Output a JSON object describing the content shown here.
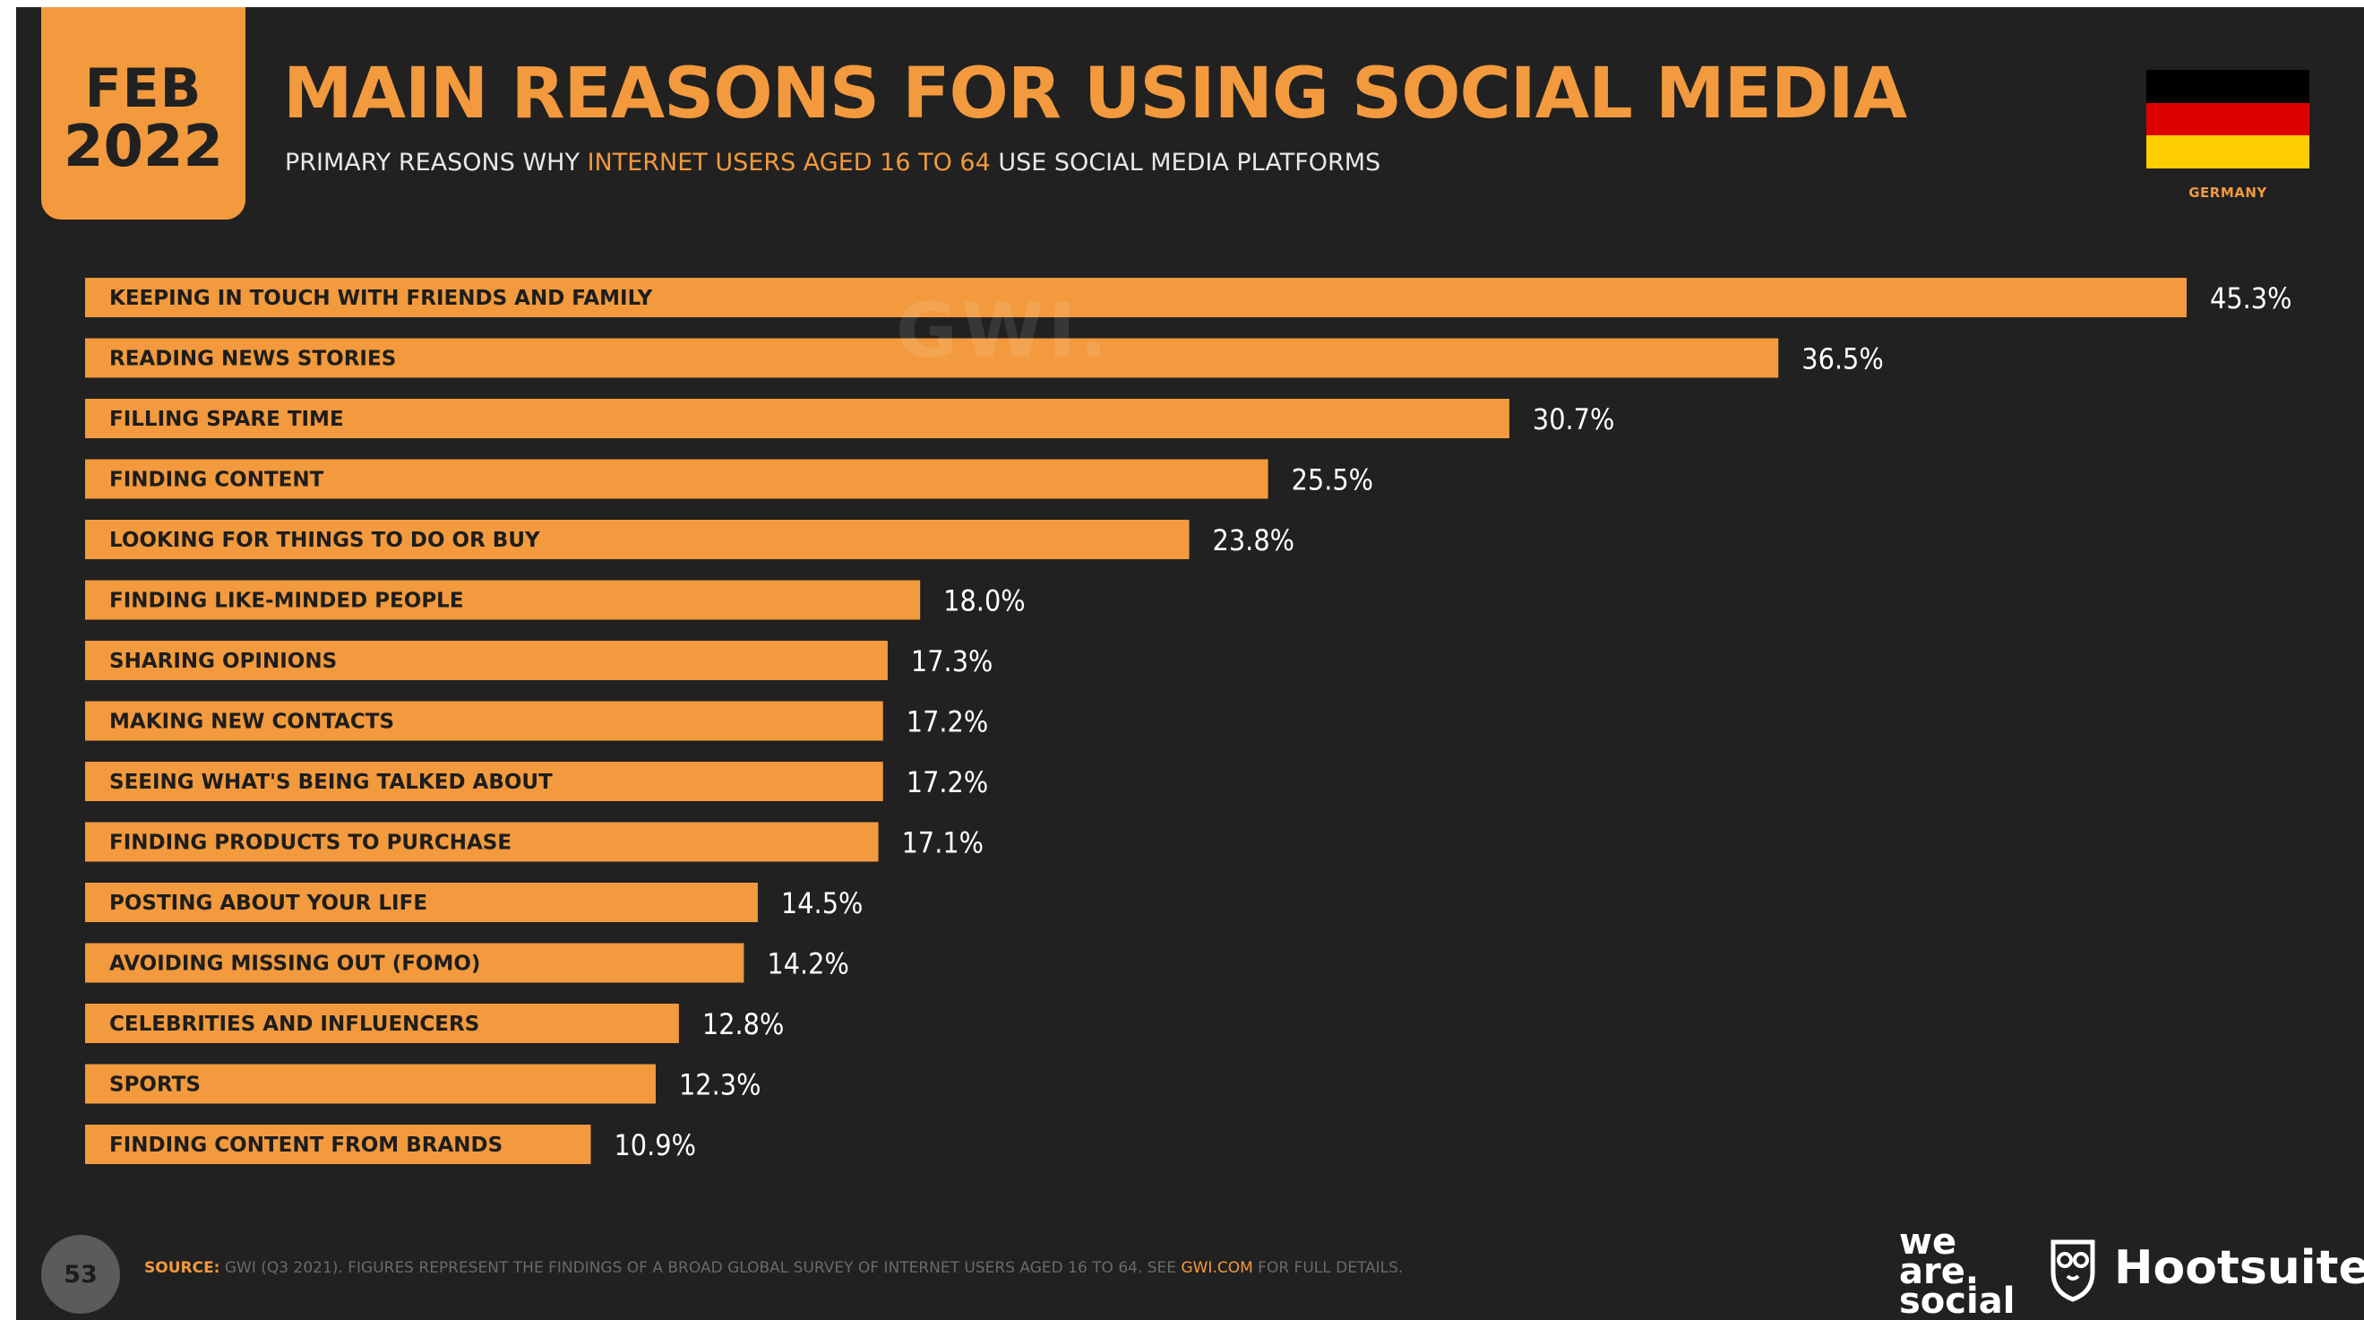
{
  "header": {
    "badge_month": "FEB",
    "badge_year": "2022",
    "title": "MAIN REASONS FOR USING SOCIAL MEDIA",
    "subtitle_before": "PRIMARY REASONS WHY ",
    "subtitle_highlight": "INTERNET USERS AGED 16 TO 64",
    "subtitle_after": " USE SOCIAL MEDIA PLATFORMS"
  },
  "country": {
    "label": "GERMANY",
    "flag_colors": [
      "#000000",
      "#dd0000",
      "#ffce00"
    ]
  },
  "watermark": "GWI.",
  "chart_data": {
    "type": "bar",
    "orientation": "horizontal",
    "categories": [
      "KEEPING IN TOUCH WITH FRIENDS AND FAMILY",
      "READING NEWS STORIES",
      "FILLING SPARE TIME",
      "FINDING CONTENT",
      "LOOKING FOR THINGS TO DO OR BUY",
      "FINDING LIKE-MINDED PEOPLE",
      "SHARING OPINIONS",
      "MAKING NEW CONTACTS",
      "SEEING WHAT'S BEING TALKED ABOUT",
      "FINDING PRODUCTS TO PURCHASE",
      "POSTING ABOUT YOUR LIFE",
      "AVOIDING MISSING OUT (FOMO)",
      "CELEBRITIES AND INFLUENCERS",
      "SPORTS",
      "FINDING CONTENT FROM BRANDS"
    ],
    "values": [
      45.3,
      36.5,
      30.7,
      25.5,
      23.8,
      18.0,
      17.3,
      17.2,
      17.2,
      17.1,
      14.5,
      14.2,
      12.8,
      12.3,
      10.9
    ],
    "value_labels": [
      "45.3%",
      "36.5%",
      "30.7%",
      "25.5%",
      "23.8%",
      "18.0%",
      "17.3%",
      "17.2%",
      "17.2%",
      "17.1%",
      "14.5%",
      "14.2%",
      "12.8%",
      "12.3%",
      "10.9%"
    ],
    "bar_color": "#f29a3d",
    "label_color": "#1d1d1d",
    "value_color": "#ffffff",
    "xlim": [
      0,
      45.3
    ],
    "grid": false,
    "legend": "none"
  },
  "footer": {
    "source_label": "SOURCE:",
    "source_text": " GWI (Q3 2021). FIGURES REPRESENT THE FINDINGS OF A BROAD GLOBAL SURVEY OF INTERNET USERS AGED 16 TO 64. SEE ",
    "source_link": "GWI.COM",
    "source_after": " FOR FULL DETAILS.",
    "page_number": "53",
    "logo_we": "we",
    "logo_are": "are.",
    "logo_social": "social",
    "logo_hootsuite": "Hootsuite",
    "logo_hootsuite_mark": "®",
    "logo_hootsuite_icon": "owl-shield-icon"
  },
  "colors": {
    "background": "#212121",
    "accent": "#f29a3d"
  }
}
